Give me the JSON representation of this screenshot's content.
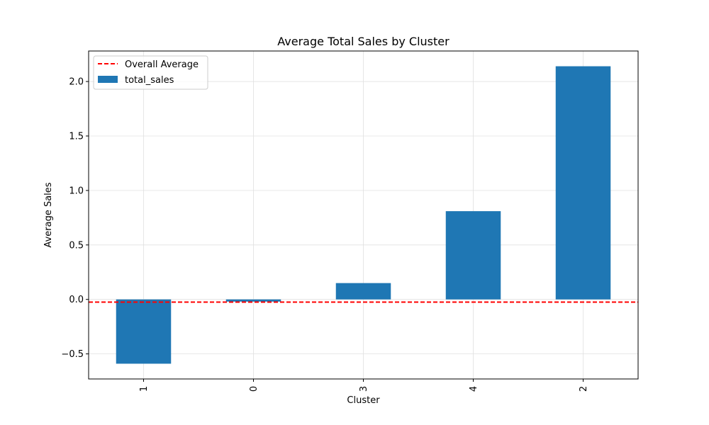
{
  "chart_data": {
    "type": "bar",
    "title": "Average Total Sales by Cluster",
    "xlabel": "Cluster",
    "ylabel": "Average Sales",
    "categories": [
      "1",
      "0",
      "3",
      "4",
      "2"
    ],
    "series": [
      {
        "name": "total_sales",
        "values": [
          -0.59,
          -0.02,
          0.15,
          0.81,
          2.14
        ]
      }
    ],
    "reference_line": {
      "name": "Overall Average",
      "value": -0.025
    },
    "ylim": [
      -0.73,
      2.28
    ],
    "yticks": [
      -0.5,
      0.0,
      0.5,
      1.0,
      1.5,
      2.0
    ],
    "ytick_labels": [
      "−0.5",
      "0.0",
      "0.5",
      "1.0",
      "1.5",
      "2.0"
    ],
    "grid": true,
    "legend_position": "top-left",
    "colors": {
      "bar": "#1f77b4",
      "reference_line": "#ff0000",
      "grid": "#e0e0e0"
    }
  }
}
